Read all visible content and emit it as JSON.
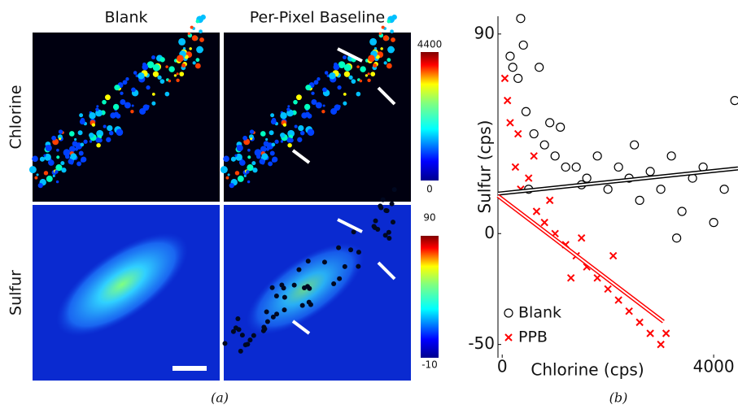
{
  "panel_a": {
    "column_titles": [
      "Blank",
      "Per-Pixel Baseline"
    ],
    "row_titles": [
      "Chlorine",
      "Sulfur"
    ],
    "colorbars": [
      {
        "max": "4400",
        "min": "0"
      },
      {
        "max": "90",
        "min": "-10"
      }
    ],
    "caption": "(a)"
  },
  "chart_data": {
    "type": "scatter",
    "caption": "(b)",
    "xlabel": "Chlorine (cps)",
    "ylabel": "Sulfur (cps)",
    "xlim": [
      -80,
      4460
    ],
    "ylim": [
      -56,
      98
    ],
    "xticks": [
      0,
      4000
    ],
    "yticks": [
      -50,
      0,
      90
    ],
    "series": [
      {
        "name": "Blank",
        "color": "#000000",
        "marker": "circle",
        "x": [
          350,
          150,
          300,
          450,
          600,
          800,
          1000,
          1200,
          1400,
          1600,
          1800,
          2000,
          2200,
          2400,
          2600,
          2800,
          3000,
          3200,
          3400,
          3600,
          3800,
          4000,
          4200,
          4400,
          200,
          700,
          1100,
          1500,
          2500,
          3300,
          400,
          500,
          900
        ],
        "y": [
          97,
          80,
          70,
          55,
          45,
          40,
          35,
          30,
          30,
          25,
          35,
          20,
          30,
          25,
          15,
          28,
          20,
          35,
          10,
          25,
          30,
          5,
          20,
          60,
          75,
          75,
          48,
          22,
          40,
          -2,
          85,
          20,
          50
        ]
      },
      {
        "name": "PPB",
        "color": "#ff0000",
        "marker": "x",
        "x": [
          50,
          100,
          150,
          250,
          350,
          500,
          650,
          800,
          1000,
          1200,
          1400,
          1600,
          1800,
          2000,
          2200,
          2400,
          2600,
          2800,
          3000,
          3100,
          300,
          600,
          1500,
          2100,
          900,
          1300
        ],
        "y": [
          70,
          60,
          50,
          30,
          20,
          25,
          10,
          5,
          0,
          -5,
          -10,
          -15,
          -20,
          -25,
          -30,
          -35,
          -40,
          -45,
          -50,
          -45,
          45,
          35,
          -2,
          -10,
          15,
          -20
        ]
      }
    ],
    "fit_lines": [
      {
        "color": "#000000",
        "x": [
          -80,
          4460
        ],
        "y": [
          18,
          29.4
        ]
      },
      {
        "color": "#ff0000",
        "x": [
          -80,
          3050
        ],
        "y": [
          17,
          -39.7
        ]
      }
    ]
  }
}
